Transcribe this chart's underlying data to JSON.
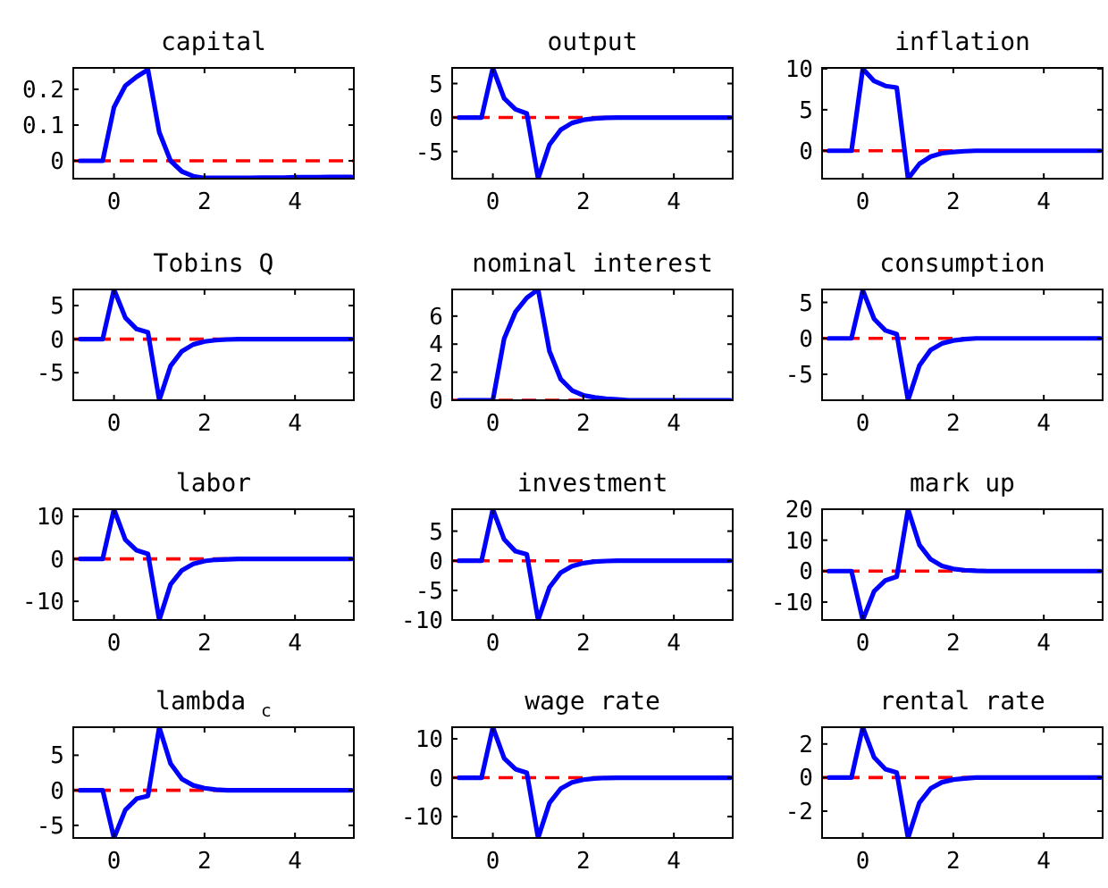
{
  "chart_data": [
    {
      "type": "line",
      "title": "capital",
      "x": [
        -0.75,
        -0.5,
        -0.25,
        0,
        0.25,
        0.5,
        0.75,
        1,
        1.25,
        1.5,
        1.75,
        2,
        2.25,
        2.5,
        2.75,
        3,
        3.25,
        3.5,
        3.75,
        4,
        4.25,
        4.5,
        4.75,
        5,
        5.25
      ],
      "xlim": [
        -0.9,
        5.3
      ],
      "xticks": [
        0,
        2,
        4
      ],
      "ylim": [
        -0.05,
        0.26
      ],
      "yticks": [
        {
          "value": 0,
          "label": "0"
        },
        {
          "value": 0.1,
          "label": "0.1"
        },
        {
          "value": 0.2,
          "label": "0.2"
        }
      ],
      "series": [
        {
          "color": "#0000ff",
          "values": [
            0,
            0,
            0,
            0.15,
            0.21,
            0.235,
            0.255,
            0.08,
            0.0,
            -0.03,
            -0.043,
            -0.048,
            -0.048,
            -0.048,
            -0.048,
            -0.048,
            -0.047,
            -0.047,
            -0.047,
            -0.046,
            -0.046,
            -0.046,
            -0.045,
            -0.045,
            -0.045
          ]
        }
      ],
      "ref_lines": [
        {
          "axis": "y",
          "value": 0,
          "color": "#ff0000",
          "line_style": "dashed"
        }
      ]
    },
    {
      "type": "line",
      "title": "output",
      "x": [
        -0.75,
        -0.5,
        -0.25,
        0,
        0.25,
        0.5,
        0.75,
        1,
        1.25,
        1.5,
        1.75,
        2,
        2.25,
        2.5,
        2.75,
        3,
        3.25,
        3.5,
        3.75,
        4,
        4.25,
        4.5,
        4.75,
        5,
        5.25
      ],
      "xlim": [
        -0.9,
        5.3
      ],
      "xticks": [
        0,
        2,
        4
      ],
      "ylim": [
        -9,
        7.3
      ],
      "yticks": [
        -5,
        0,
        5
      ],
      "series": [
        {
          "color": "#0000ff",
          "values": [
            0,
            0,
            0,
            7.3,
            2.8,
            1.2,
            0.6,
            -9,
            -4,
            -1.8,
            -0.8,
            -0.35,
            -0.15,
            -0.05,
            0,
            0,
            0,
            0,
            0,
            0,
            0,
            0,
            0,
            0,
            0
          ]
        }
      ],
      "ref_lines": [
        {
          "axis": "y",
          "value": 0,
          "color": "#ff0000",
          "line_style": "dashed"
        }
      ]
    },
    {
      "type": "line",
      "title": "inflation",
      "x": [
        -0.75,
        -0.5,
        -0.25,
        0,
        0.25,
        0.5,
        0.75,
        1,
        1.25,
        1.5,
        1.75,
        2,
        2.25,
        2.5,
        2.75,
        3,
        3.25,
        3.5,
        3.75,
        4,
        4.25,
        4.5,
        4.75,
        5,
        5.25
      ],
      "xlim": [
        -0.9,
        5.3
      ],
      "xticks": [
        0,
        2,
        4
      ],
      "ylim": [
        -3.4,
        10.1
      ],
      "yticks": [
        0,
        5,
        10
      ],
      "series": [
        {
          "color": "#0000ff",
          "values": [
            0,
            0,
            0,
            10,
            8.5,
            7.9,
            7.7,
            -3.4,
            -1.6,
            -0.7,
            -0.3,
            -0.15,
            -0.05,
            0,
            0,
            0,
            0,
            0,
            0,
            0,
            0,
            0,
            0,
            0,
            0
          ]
        }
      ],
      "ref_lines": [
        {
          "axis": "y",
          "value": 0,
          "color": "#ff0000",
          "line_style": "dashed"
        }
      ]
    },
    {
      "type": "line",
      "title": "Tobins Q",
      "x": [
        -0.75,
        -0.5,
        -0.25,
        0,
        0.25,
        0.5,
        0.75,
        1,
        1.25,
        1.5,
        1.75,
        2,
        2.25,
        2.5,
        2.75,
        3,
        3.25,
        3.5,
        3.75,
        4,
        4.25,
        4.5,
        4.75,
        5,
        5.25
      ],
      "xlim": [
        -0.9,
        5.3
      ],
      "xticks": [
        0,
        2,
        4
      ],
      "ylim": [
        -9.1,
        7.4
      ],
      "yticks": [
        -5,
        0,
        5
      ],
      "series": [
        {
          "color": "#0000ff",
          "values": [
            0,
            0,
            0,
            7.4,
            3.2,
            1.5,
            1.0,
            -9.1,
            -4,
            -1.8,
            -0.8,
            -0.35,
            -0.15,
            -0.05,
            0,
            0,
            0,
            0,
            0,
            0,
            0,
            0,
            0,
            0,
            0
          ]
        }
      ],
      "ref_lines": [
        {
          "axis": "y",
          "value": 0,
          "color": "#ff0000",
          "line_style": "dashed"
        }
      ]
    },
    {
      "type": "line",
      "title": "nominal interest",
      "x": [
        -0.75,
        -0.5,
        -0.25,
        0,
        0.25,
        0.5,
        0.75,
        1,
        1.25,
        1.5,
        1.75,
        2,
        2.25,
        2.5,
        2.75,
        3,
        3.25,
        3.5,
        3.75,
        4,
        4.25,
        4.5,
        4.75,
        5,
        5.25
      ],
      "xlim": [
        -0.9,
        5.3
      ],
      "xticks": [
        0,
        2,
        4
      ],
      "ylim": [
        0,
        7.9
      ],
      "yticks": [
        0,
        2,
        4,
        6
      ],
      "series": [
        {
          "color": "#0000ff",
          "values": [
            0,
            0,
            0,
            0,
            4.4,
            6.3,
            7.3,
            7.9,
            3.5,
            1.5,
            0.7,
            0.35,
            0.2,
            0.1,
            0.05,
            0,
            0,
            0,
            0,
            0,
            0,
            0,
            0,
            0,
            0
          ]
        }
      ],
      "ref_lines": [
        {
          "axis": "y",
          "value": 0,
          "color": "#ff0000",
          "line_style": "dashed"
        }
      ]
    },
    {
      "type": "line",
      "title": "consumption",
      "x": [
        -0.75,
        -0.5,
        -0.25,
        0,
        0.25,
        0.5,
        0.75,
        1,
        1.25,
        1.5,
        1.75,
        2,
        2.25,
        2.5,
        2.75,
        3,
        3.25,
        3.5,
        3.75,
        4,
        4.25,
        4.5,
        4.75,
        5,
        5.25
      ],
      "xlim": [
        -0.9,
        5.3
      ],
      "xticks": [
        0,
        2,
        4
      ],
      "ylim": [
        -8.6,
        6.8
      ],
      "yticks": [
        -5,
        0,
        5
      ],
      "series": [
        {
          "color": "#0000ff",
          "values": [
            0,
            0,
            0,
            6.7,
            2.7,
            1.1,
            0.6,
            -8.6,
            -3.8,
            -1.6,
            -0.7,
            -0.3,
            -0.1,
            0,
            0,
            0,
            0,
            0,
            0,
            0,
            0,
            0,
            0,
            0,
            0
          ]
        }
      ],
      "ref_lines": [
        {
          "axis": "y",
          "value": 0,
          "color": "#ff0000",
          "line_style": "dashed"
        }
      ]
    },
    {
      "type": "line",
      "title": "labor",
      "x": [
        -0.75,
        -0.5,
        -0.25,
        0,
        0.25,
        0.5,
        0.75,
        1,
        1.25,
        1.5,
        1.75,
        2,
        2.25,
        2.5,
        2.75,
        3,
        3.25,
        3.5,
        3.75,
        4,
        4.25,
        4.5,
        4.75,
        5,
        5.25
      ],
      "xlim": [
        -0.9,
        5.3
      ],
      "xticks": [
        0,
        2,
        4
      ],
      "ylim": [
        -14.4,
        11.7
      ],
      "yticks": [
        -10,
        0,
        10
      ],
      "series": [
        {
          "color": "#0000ff",
          "values": [
            0,
            0,
            0,
            11.7,
            4.5,
            2,
            1.2,
            -14.4,
            -6,
            -2.7,
            -1.2,
            -0.5,
            -0.2,
            -0.1,
            0,
            0,
            0,
            0,
            0,
            0,
            0,
            0,
            0,
            0,
            0
          ]
        }
      ],
      "ref_lines": [
        {
          "axis": "y",
          "value": 0,
          "color": "#ff0000",
          "line_style": "dashed"
        }
      ]
    },
    {
      "type": "line",
      "title": "investment",
      "x": [
        -0.75,
        -0.5,
        -0.25,
        0,
        0.25,
        0.5,
        0.75,
        1,
        1.25,
        1.5,
        1.75,
        2,
        2.25,
        2.5,
        2.75,
        3,
        3.25,
        3.5,
        3.75,
        4,
        4.25,
        4.5,
        4.75,
        5,
        5.25
      ],
      "xlim": [
        -0.9,
        5.3
      ],
      "xticks": [
        0,
        2,
        4
      ],
      "ylim": [
        -10,
        8.7
      ],
      "yticks": [
        -10,
        -5,
        0,
        5
      ],
      "series": [
        {
          "color": "#0000ff",
          "values": [
            0,
            0,
            0,
            8.7,
            3.6,
            1.6,
            1.1,
            -10,
            -4.5,
            -2,
            -0.9,
            -0.4,
            -0.15,
            -0.05,
            0,
            0,
            0,
            0,
            0,
            0,
            0,
            0,
            0,
            0,
            0
          ]
        }
      ],
      "ref_lines": [
        {
          "axis": "y",
          "value": 0,
          "color": "#ff0000",
          "line_style": "dashed"
        }
      ]
    },
    {
      "type": "line",
      "title": "mark up",
      "x": [
        -0.75,
        -0.5,
        -0.25,
        0,
        0.25,
        0.5,
        0.75,
        1,
        1.25,
        1.5,
        1.75,
        2,
        2.25,
        2.5,
        2.75,
        3,
        3.25,
        3.5,
        3.75,
        4,
        4.25,
        4.5,
        4.75,
        5,
        5.25
      ],
      "xlim": [
        -0.9,
        5.3
      ],
      "xticks": [
        0,
        2,
        4
      ],
      "ylim": [
        -15.8,
        20
      ],
      "yticks": [
        -10,
        0,
        10,
        20
      ],
      "series": [
        {
          "color": "#0000ff",
          "values": [
            0,
            0,
            0,
            -15.8,
            -6.5,
            -3,
            -1.8,
            20,
            8.5,
            3.8,
            1.7,
            0.7,
            0.3,
            0.1,
            0,
            0,
            0,
            0,
            0,
            0,
            0,
            0,
            0,
            0,
            0
          ]
        }
      ],
      "ref_lines": [
        {
          "axis": "y",
          "value": 0,
          "color": "#ff0000",
          "line_style": "dashed"
        }
      ]
    },
    {
      "type": "line",
      "title": "lambda $_{c}$",
      "x": [
        -0.75,
        -0.5,
        -0.25,
        0,
        0.25,
        0.5,
        0.75,
        1,
        1.25,
        1.5,
        1.75,
        2,
        2.25,
        2.5,
        2.75,
        3,
        3.25,
        3.5,
        3.75,
        4,
        4.25,
        4.5,
        4.75,
        5,
        5.25
      ],
      "xlim": [
        -0.9,
        5.3
      ],
      "xticks": [
        0,
        2,
        4
      ],
      "ylim": [
        -6.8,
        9
      ],
      "yticks": [
        -5,
        0,
        5
      ],
      "series": [
        {
          "color": "#0000ff",
          "values": [
            0,
            0,
            0,
            -6.8,
            -2.8,
            -1.2,
            -0.8,
            9,
            3.8,
            1.6,
            0.7,
            0.3,
            0.1,
            0,
            0,
            0,
            0,
            0,
            0,
            0,
            0,
            0,
            0,
            0,
            0
          ]
        }
      ],
      "ref_lines": [
        {
          "axis": "y",
          "value": 0,
          "color": "#ff0000",
          "line_style": "dashed"
        }
      ]
    },
    {
      "type": "line",
      "title": "wage rate",
      "x": [
        -0.75,
        -0.5,
        -0.25,
        0,
        0.25,
        0.5,
        0.75,
        1,
        1.25,
        1.5,
        1.75,
        2,
        2.25,
        2.5,
        2.75,
        3,
        3.25,
        3.5,
        3.75,
        4,
        4.25,
        4.5,
        4.75,
        5,
        5.25
      ],
      "xlim": [
        -0.9,
        5.3
      ],
      "xticks": [
        0,
        2,
        4
      ],
      "ylim": [
        -15.5,
        13
      ],
      "yticks": [
        -10,
        0,
        10
      ],
      "series": [
        {
          "color": "#0000ff",
          "values": [
            0,
            0,
            0,
            13,
            5,
            2.2,
            1.3,
            -15.5,
            -6.5,
            -2.8,
            -1.2,
            -0.5,
            -0.2,
            -0.05,
            0,
            0,
            0,
            0,
            0,
            0,
            0,
            0,
            0,
            0,
            0
          ]
        }
      ],
      "ref_lines": [
        {
          "axis": "y",
          "value": 0,
          "color": "#ff0000",
          "line_style": "dashed"
        }
      ]
    },
    {
      "type": "line",
      "title": "rental rate",
      "x": [
        -0.75,
        -0.5,
        -0.25,
        0,
        0.25,
        0.5,
        0.75,
        1,
        1.25,
        1.5,
        1.75,
        2,
        2.25,
        2.5,
        2.75,
        3,
        3.25,
        3.5,
        3.75,
        4,
        4.25,
        4.5,
        4.75,
        5,
        5.25
      ],
      "xlim": [
        -0.9,
        5.3
      ],
      "xticks": [
        0,
        2,
        4
      ],
      "ylim": [
        -3.6,
        3
      ],
      "yticks": [
        -2,
        0,
        2
      ],
      "series": [
        {
          "color": "#0000ff",
          "values": [
            0,
            0,
            0,
            3,
            1.2,
            0.5,
            0.3,
            -3.6,
            -1.5,
            -0.65,
            -0.28,
            -0.12,
            -0.05,
            0,
            0,
            0,
            0,
            0,
            0,
            0,
            0,
            0,
            0,
            0,
            0
          ]
        }
      ],
      "ref_lines": [
        {
          "axis": "y",
          "value": 0,
          "color": "#ff0000",
          "line_style": "dashed"
        }
      ]
    }
  ]
}
